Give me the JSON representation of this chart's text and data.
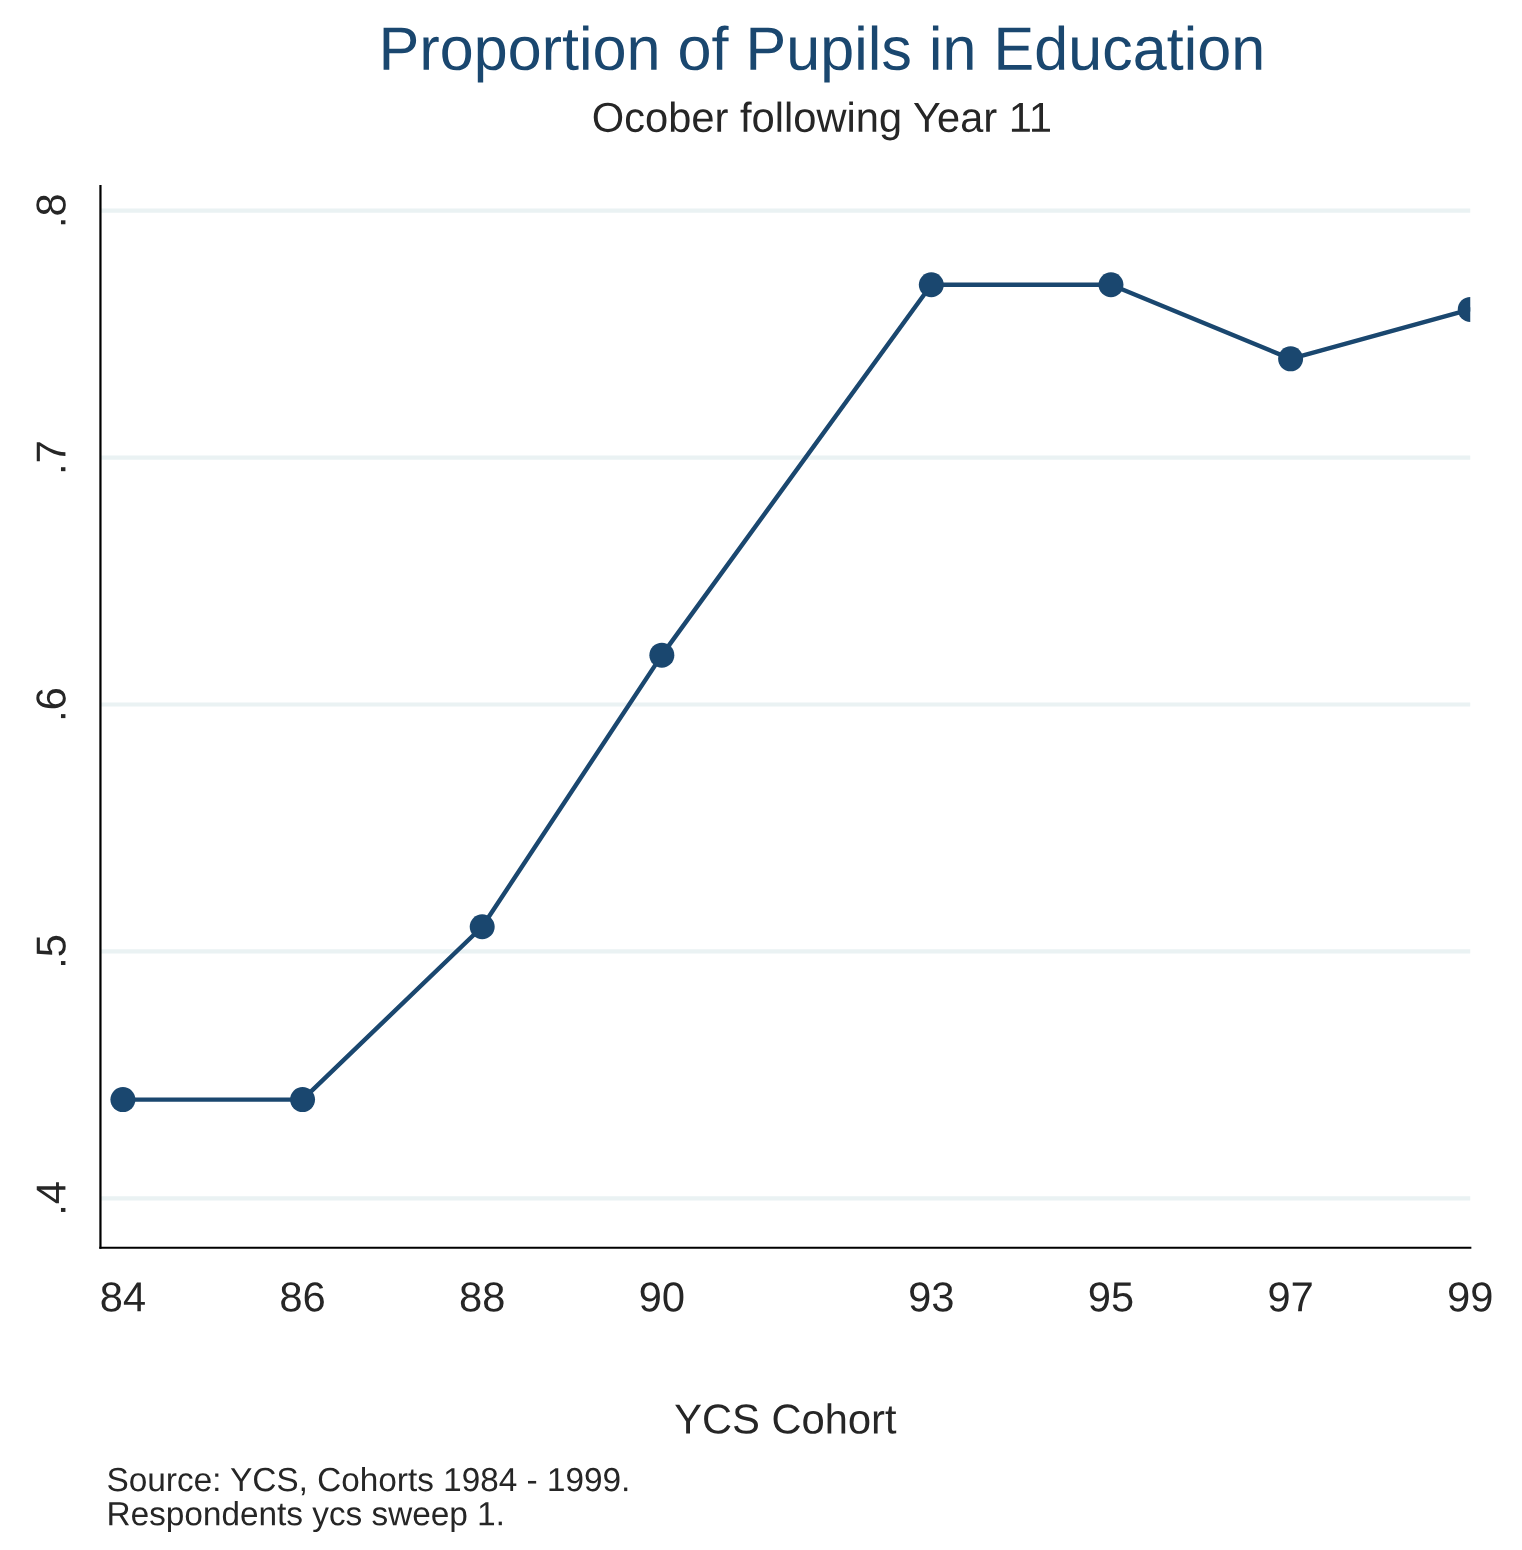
{
  "chart_data": {
    "type": "line",
    "title": "Proportion of Pupils in Education",
    "subtitle": "Ocober following Year 11",
    "xlabel": "YCS Cohort",
    "x": [
      84,
      86,
      88,
      90,
      93,
      95,
      97,
      99
    ],
    "series": [
      {
        "color": "#1a476f",
        "values": [
          0.44,
          0.44,
          0.51,
          0.62,
          0.77,
          0.77,
          0.74,
          0.76
        ]
      }
    ],
    "xlim": [
      83.75,
      99
    ],
    "xticks": [
      84,
      86,
      88,
      90,
      93,
      95,
      97,
      99
    ],
    "ylim": [
      0.38,
      0.81
    ],
    "yticks": [
      {
        "value": 0.4,
        "label": ".4"
      },
      {
        "value": 0.5,
        "label": ".5"
      },
      {
        "value": 0.6,
        "label": ".6"
      },
      {
        "value": 0.7,
        "label": ".7"
      },
      {
        "value": 0.8,
        "label": ".8"
      }
    ],
    "grid": "y",
    "marker": "circle",
    "line_style": "solid",
    "annotations": [
      "Source: YCS, Cohorts 1984 - 1999.",
      "Respondents ycs sweep 1."
    ]
  }
}
